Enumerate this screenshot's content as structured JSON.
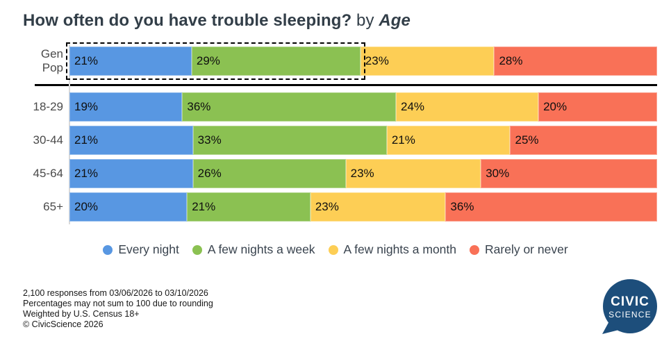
{
  "title": {
    "question": "How often do you have trouble sleeping?",
    "connector": " by ",
    "group": "Age"
  },
  "chart_data": {
    "type": "bar",
    "subtype": "stacked-horizontal",
    "title": "How often do you have trouble sleeping? by Age",
    "categories": [
      "Gen Pop",
      "18-29",
      "30-44",
      "45-64",
      "65+"
    ],
    "series": [
      {
        "name": "Every night",
        "color": "#5897E2",
        "values": [
          21,
          19,
          21,
          21,
          20
        ]
      },
      {
        "name": "A few nights a week",
        "color": "#8BC152",
        "values": [
          29,
          36,
          33,
          26,
          21
        ]
      },
      {
        "name": "A few nights a month",
        "color": "#FDCE55",
        "values": [
          23,
          24,
          21,
          23,
          23
        ]
      },
      {
        "name": "Rarely or never",
        "color": "#F97157",
        "values": [
          28,
          20,
          25,
          30,
          36
        ]
      }
    ],
    "value_suffix": "%",
    "legend_position": "bottom",
    "highlight": {
      "category": "Gen Pop",
      "segments": [
        "Every night",
        "A few nights a week"
      ],
      "style": "black-dashed-outline"
    },
    "separator_after_first_category": true
  },
  "footer": {
    "lines": [
      "2,100 responses from 03/06/2026 to 03/10/2026",
      "Percentages may not sum to 100 due to rounding",
      "Weighted by U.S. Census 18+",
      "© CivicScience 2026"
    ]
  },
  "logo": {
    "line1": "CIVIC",
    "line2": "SCIENCE",
    "color": "#1D4E7B"
  }
}
